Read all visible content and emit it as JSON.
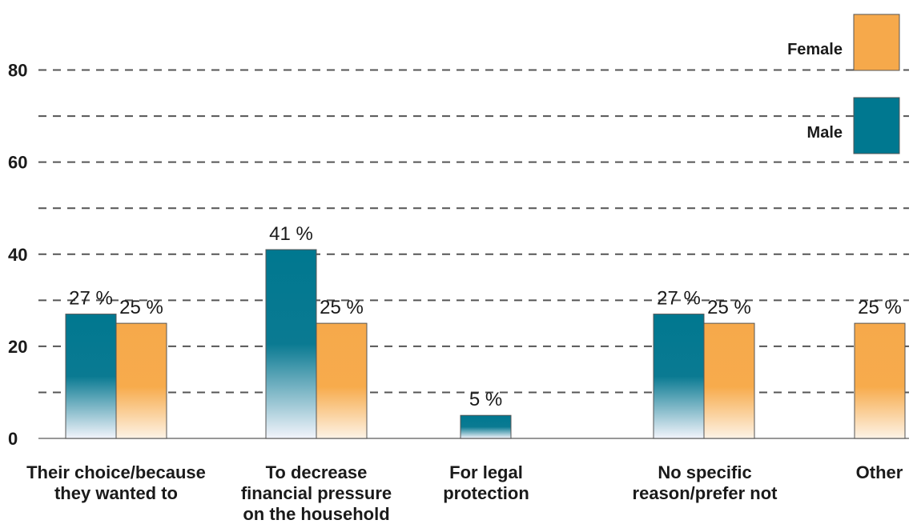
{
  "chart_data": {
    "type": "bar",
    "categories": [
      [
        "Their choice/because",
        "they wanted to"
      ],
      [
        "To decrease",
        "financial pressure",
        "on the household"
      ],
      [
        "For legal",
        "protection"
      ],
      [
        "No specific",
        "reason/prefer not"
      ],
      [
        "Other"
      ]
    ],
    "series": [
      {
        "name": "Male",
        "color": "#007890",
        "values": [
          27,
          41,
          5,
          27,
          null
        ],
        "labels": [
          "27 %",
          "41 %",
          "5 %",
          "27 %",
          ""
        ]
      },
      {
        "name": "Female",
        "color": "#f6a94b",
        "values": [
          25,
          25,
          null,
          25,
          25
        ],
        "labels": [
          "25 %",
          "25 %",
          "",
          "25 %",
          "25 %"
        ]
      }
    ],
    "ylim": [
      0,
      90
    ],
    "yticks": [
      0,
      20,
      40,
      60,
      80
    ],
    "grid": true,
    "legend_position": "top-right",
    "xlabel": "",
    "ylabel": "",
    "title": ""
  }
}
